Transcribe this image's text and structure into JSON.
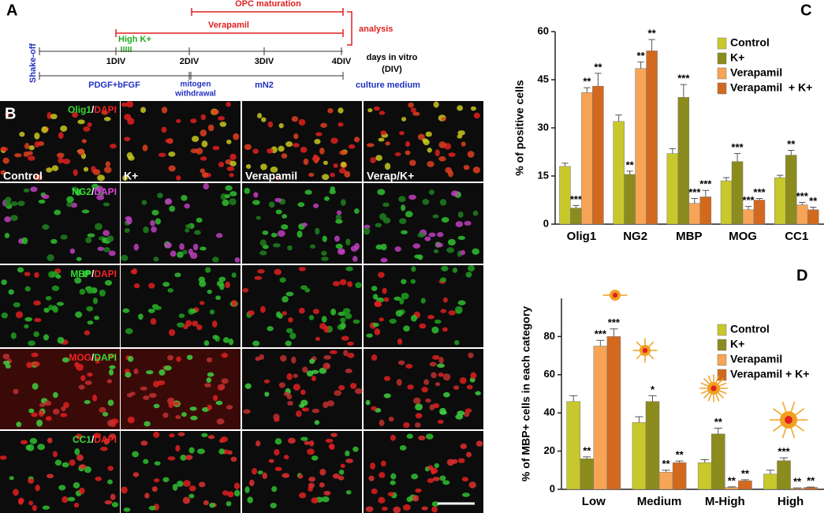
{
  "panel_a": {
    "label": "A",
    "opc_maturation": "OPC maturation",
    "verapamil": "Verapamil",
    "high_k": "High K+",
    "analysis": "analysis",
    "shake_off": "Shake-off",
    "days": [
      "1DIV",
      "2DIV",
      "3DIV",
      "4DIV"
    ],
    "days_in_vitro": [
      "days in vitro",
      "(DIV)"
    ],
    "pdgf": "PDGF+bFGF",
    "mitogen": [
      "mitogen",
      "withdrawal"
    ],
    "mn2": "mN2",
    "culture": "culture medium"
  },
  "panel_b": {
    "label": "B",
    "separator": "/",
    "columns": [
      "Control",
      "K+",
      "Verapamil",
      "Verap/K+"
    ],
    "rows": [
      {
        "stain": "Olig1",
        "stain_color": "#33dd33",
        "counter": "DAPI",
        "counter_color": "#ee2222"
      },
      {
        "stain": "NG2",
        "stain_color": "#33dd33",
        "counter": "DAPI",
        "counter_color": "#dd44dd"
      },
      {
        "stain": "MBP",
        "stain_color": "#33dd33",
        "counter": "DAPI",
        "counter_color": "#ee2222"
      },
      {
        "stain": "MOG",
        "stain_color": "#ee2222",
        "counter": "DAPI",
        "counter_color": "#33dd33"
      },
      {
        "stain": "CC1",
        "stain_color": "#33dd33",
        "counter": "DAPI",
        "counter_color": "#ee2222"
      }
    ]
  },
  "chart_data": [
    {
      "type": "bar",
      "panel": "C",
      "y_label": "% of positive cells",
      "categories": [
        "Olig1",
        "NG2",
        "MBP",
        "MOG",
        "CC1"
      ],
      "ylim": [
        0,
        60
      ],
      "yticks": [
        0,
        15,
        30,
        45,
        60
      ],
      "series": [
        {
          "name": "Control",
          "color": "#c8c82c",
          "values": [
            18,
            32,
            22,
            13.5,
            14.5
          ],
          "errors": [
            1,
            2,
            1.5,
            1,
            0.7
          ]
        },
        {
          "name": "K+",
          "color": "#8c8c1e",
          "values": [
            5,
            15.5,
            39.5,
            19.5,
            21.5
          ],
          "errors": [
            0.8,
            1,
            4,
            2.5,
            1.5
          ],
          "sig": [
            "***",
            "**",
            "***",
            "***",
            "**"
          ]
        },
        {
          "name": "Verapamil",
          "color": "#f7a457",
          "values": [
            41,
            48.5,
            6.5,
            4.5,
            6
          ],
          "errors": [
            1.5,
            2,
            1.5,
            1,
            0.8
          ],
          "sig": [
            "**",
            "**",
            "***",
            "***",
            "***"
          ]
        },
        {
          "name": "Verapamil  + K+",
          "color": "#d2691e",
          "values": [
            43,
            54,
            8.5,
            7.5,
            4.5
          ],
          "errors": [
            4,
            3.5,
            2,
            0.5,
            0.8
          ],
          "sig": [
            "**",
            "**",
            "***",
            "***",
            "**"
          ]
        }
      ]
    },
    {
      "type": "bar",
      "panel": "D",
      "y_label": "% of MBP+ cells in each category",
      "categories": [
        "Low",
        "Medium",
        "M-High",
        "High"
      ],
      "ylim": [
        0,
        100
      ],
      "yticks": [
        0,
        20,
        40,
        60,
        80
      ],
      "series": [
        {
          "name": "Control",
          "color": "#c8c82c",
          "values": [
            46,
            35,
            14,
            8
          ],
          "errors": [
            3,
            3,
            1.5,
            2
          ]
        },
        {
          "name": "K+",
          "color": "#8c8c1e",
          "values": [
            16,
            46,
            29,
            15
          ],
          "errors": [
            1,
            3,
            3,
            1.5
          ],
          "sig": [
            "**",
            "*",
            "**",
            "***"
          ]
        },
        {
          "name": "Verapamil",
          "color": "#f7a457",
          "values": [
            75,
            9,
            1,
            0.5
          ],
          "errors": [
            3,
            1,
            0.3,
            0.2
          ],
          "sig": [
            "***",
            "**",
            "**",
            "**"
          ]
        },
        {
          "name": "Verapamil + K+",
          "color": "#d2691e",
          "values": [
            80,
            14,
            4.5,
            1
          ],
          "errors": [
            4,
            0.8,
            0.5,
            0.2
          ],
          "sig": [
            "***",
            "**",
            "**",
            "**"
          ]
        }
      ]
    }
  ]
}
